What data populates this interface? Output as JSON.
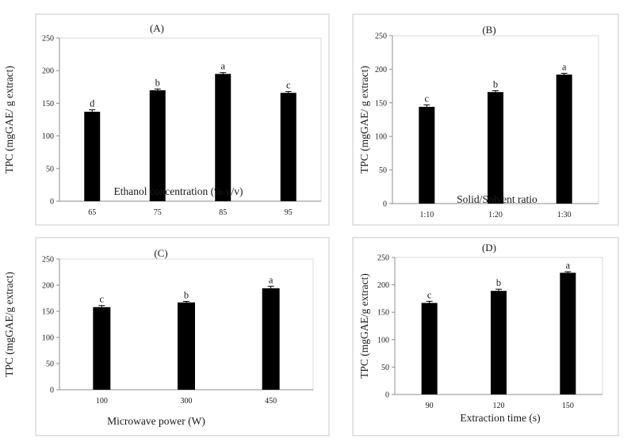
{
  "chart_data": [
    {
      "type": "bar",
      "title": "(A)",
      "xlabel": "Ethanol concentration (% v/v)",
      "ylabel": "TPC (mgGAE/ g extract)",
      "categories": [
        "65",
        "75",
        "85",
        "95"
      ],
      "values": [
        137,
        170,
        195,
        166
      ],
      "errors": [
        3,
        2,
        2,
        2
      ],
      "letters": [
        "d",
        "b",
        "a",
        "c"
      ],
      "ylim": [
        0,
        250
      ],
      "yticks": [
        0,
        50,
        100,
        150,
        200,
        250
      ],
      "ytick_labels": [
        "0",
        "50",
        "100",
        "150",
        "200",
        "250"
      ]
    },
    {
      "type": "bar",
      "title": "(B)",
      "xlabel": "Solid/Solvent ratio",
      "ylabel": "TPC (mgGAE/ g extract)",
      "categories": [
        "1:10",
        "1:20",
        "1:30"
      ],
      "values": [
        144,
        166,
        192
      ],
      "errors": [
        3,
        2,
        2
      ],
      "letters": [
        "c",
        "b",
        "a"
      ],
      "ylim": [
        0,
        250
      ],
      "yticks": [
        0,
        50,
        100,
        150,
        200,
        250
      ],
      "ytick_labels": [
        "0",
        "50",
        "100",
        "150",
        "200",
        "250"
      ]
    },
    {
      "type": "bar",
      "title": "(C)",
      "xlabel": "Microwave power (W)",
      "ylabel": "TPC (mgGAE/g extract)",
      "categories": [
        "100",
        "300",
        "450"
      ],
      "values": [
        158,
        167,
        194
      ],
      "errors": [
        3,
        2,
        4
      ],
      "letters": [
        "c",
        "b",
        "a"
      ],
      "ylim": [
        0,
        250
      ],
      "yticks": [
        0,
        50,
        100,
        150,
        200,
        250
      ],
      "ytick_labels": [
        "0",
        "50",
        "100",
        "150",
        "200",
        "250"
      ]
    },
    {
      "type": "bar",
      "title": "(D)",
      "xlabel": "Extraction time (s)",
      "ylabel": "TPC (mgGAE/g extract)",
      "categories": [
        "90",
        "120",
        "150"
      ],
      "values": [
        167,
        189,
        222
      ],
      "errors": [
        3,
        3,
        2
      ],
      "letters": [
        "c",
        "b",
        "a"
      ],
      "ylim": [
        0,
        250
      ],
      "yticks": [
        0,
        50,
        100,
        150,
        200,
        250
      ],
      "ytick_labels": [
        "0",
        "50",
        "100",
        "150",
        "200",
        "250"
      ]
    }
  ],
  "colors": {
    "bar": "#000000",
    "frame": "#c8c8c8",
    "axis": "#8c8c8c",
    "text": "#1a1a1a"
  }
}
